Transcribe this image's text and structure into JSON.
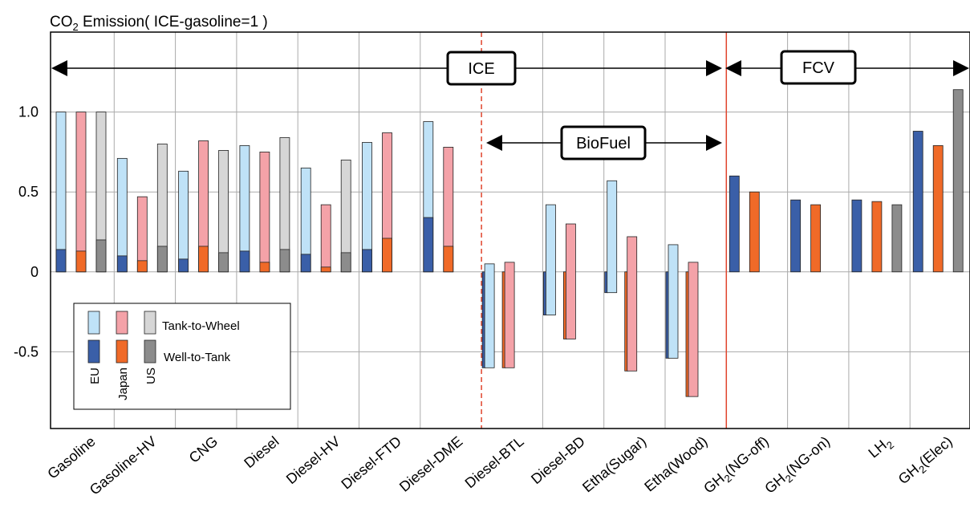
{
  "chart_data": {
    "type": "bar",
    "title_prefix": "CO",
    "title_sub": "2",
    "title_suffix": " Emission( ICE-gasoline=1 )",
    "ylim": [
      -0.98,
      1.5
    ],
    "yticks": [
      {
        "v": 1.0,
        "label": "1.0"
      },
      {
        "v": 0.5,
        "label": "0.5"
      },
      {
        "v": 0,
        "label": "0"
      },
      {
        "v": -0.5,
        "label": "-0.5"
      }
    ],
    "categories": [
      {
        "main": "Gasoline",
        "sub": "",
        "tail": ""
      },
      {
        "main": "Gasoline-HV",
        "sub": "",
        "tail": ""
      },
      {
        "main": "CNG",
        "sub": "",
        "tail": ""
      },
      {
        "main": "Diesel",
        "sub": "",
        "tail": ""
      },
      {
        "main": "Diesel-HV",
        "sub": "",
        "tail": ""
      },
      {
        "main": "Diesel-FTD",
        "sub": "",
        "tail": ""
      },
      {
        "main": "Diesel-DME",
        "sub": "",
        "tail": ""
      },
      {
        "main": "Diesel-BTL",
        "sub": "",
        "tail": ""
      },
      {
        "main": "Diesel-BD",
        "sub": "",
        "tail": ""
      },
      {
        "main": "Etha(Sugar)",
        "sub": "",
        "tail": ""
      },
      {
        "main": "Etha(Wood)",
        "sub": "",
        "tail": ""
      },
      {
        "main": "GH",
        "sub": "2",
        "tail": "(NG-off)"
      },
      {
        "main": "GH",
        "sub": "2",
        "tail": "(NG-on)"
      },
      {
        "main": "LH",
        "sub": "2",
        "tail": ""
      },
      {
        "main": "GH",
        "sub": "2",
        "tail": "(Elec)"
      }
    ],
    "regions": [
      "EU",
      "Japan",
      "US"
    ],
    "series": [
      {
        "name": "Well-to-Tank",
        "colors": {
          "EU": "#3a5fa8",
          "Japan": "#f06a28",
          "US": "#8c8c8c"
        },
        "values": {
          "EU": [
            0.14,
            0.1,
            0.08,
            0.13,
            0.11,
            0.14,
            0.34,
            -0.6,
            -0.27,
            -0.13,
            -0.54,
            0.6,
            0.45,
            0.45,
            0.88
          ],
          "Japan": [
            0.13,
            0.07,
            0.16,
            0.06,
            0.03,
            0.21,
            0.16,
            -0.6,
            -0.42,
            -0.62,
            -0.78,
            0.5,
            0.42,
            0.44,
            0.79
          ],
          "US": [
            0.2,
            0.16,
            0.12,
            0.14,
            0.12,
            null,
            null,
            null,
            null,
            null,
            null,
            null,
            null,
            0.42,
            1.14
          ]
        }
      },
      {
        "name": "Tank-to-Wheel",
        "colors": {
          "EU": "#bfe2f7",
          "Japan": "#f4a2a8",
          "US": "#d6d6d6"
        },
        "values": {
          "EU": [
            1.0,
            0.71,
            0.63,
            0.79,
            0.65,
            0.81,
            0.94,
            0.05,
            0.42,
            0.57,
            0.17,
            null,
            null,
            null,
            null
          ],
          "Japan": [
            1.0,
            0.47,
            0.82,
            0.75,
            0.42,
            0.87,
            0.78,
            0.06,
            0.3,
            0.22,
            0.06,
            null,
            null,
            null,
            null
          ],
          "US": [
            1.0,
            0.8,
            0.76,
            0.84,
            0.7,
            null,
            null,
            null,
            null,
            null,
            null,
            null,
            null,
            null,
            null
          ]
        }
      }
    ],
    "legend": {
      "rows": [
        "Tank-to-Wheel",
        "Well-to-Tank"
      ],
      "regions": [
        "EU",
        "Japan",
        "US"
      ]
    },
    "annotations": {
      "ice": "ICE",
      "fcv": "FCV",
      "biofuel": "BioFuel"
    },
    "colors": {
      "grid": "#aaaaaa",
      "divider": "#e0442c",
      "frame": "#000000"
    }
  }
}
